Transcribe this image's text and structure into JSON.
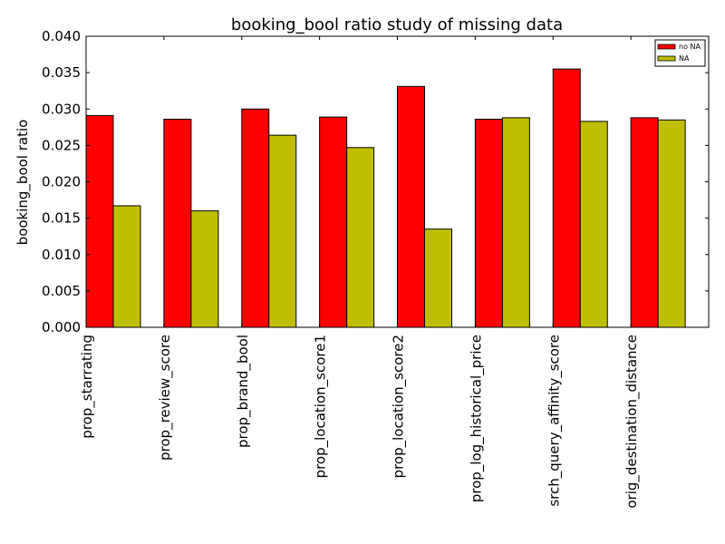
{
  "chart_data": {
    "type": "bar",
    "title": "booking_bool ratio study of missing data",
    "xlabel": "",
    "ylabel": "booking_bool ratio",
    "ylim": [
      0,
      0.04
    ],
    "yticks": [
      "0.000",
      "0.005",
      "0.010",
      "0.015",
      "0.020",
      "0.025",
      "0.030",
      "0.035",
      "0.040"
    ],
    "categories": [
      "prop_starrating",
      "prop_review_score",
      "prop_brand_bool",
      "prop_location_score1",
      "prop_location_score2",
      "prop_log_historical_price",
      "srch_query_affinity_score",
      "orig_destination_distance"
    ],
    "series": [
      {
        "name": "no NA",
        "color": "#ff0000",
        "values": [
          0.0291,
          0.0286,
          0.03,
          0.0289,
          0.0331,
          0.0286,
          0.0355,
          0.0288
        ]
      },
      {
        "name": "NA",
        "color": "#bfbf00",
        "values": [
          0.0167,
          0.016,
          0.0264,
          0.0247,
          0.0135,
          0.0288,
          0.0283,
          0.0285
        ]
      }
    ],
    "grid": false,
    "legend_position": "top-right"
  }
}
